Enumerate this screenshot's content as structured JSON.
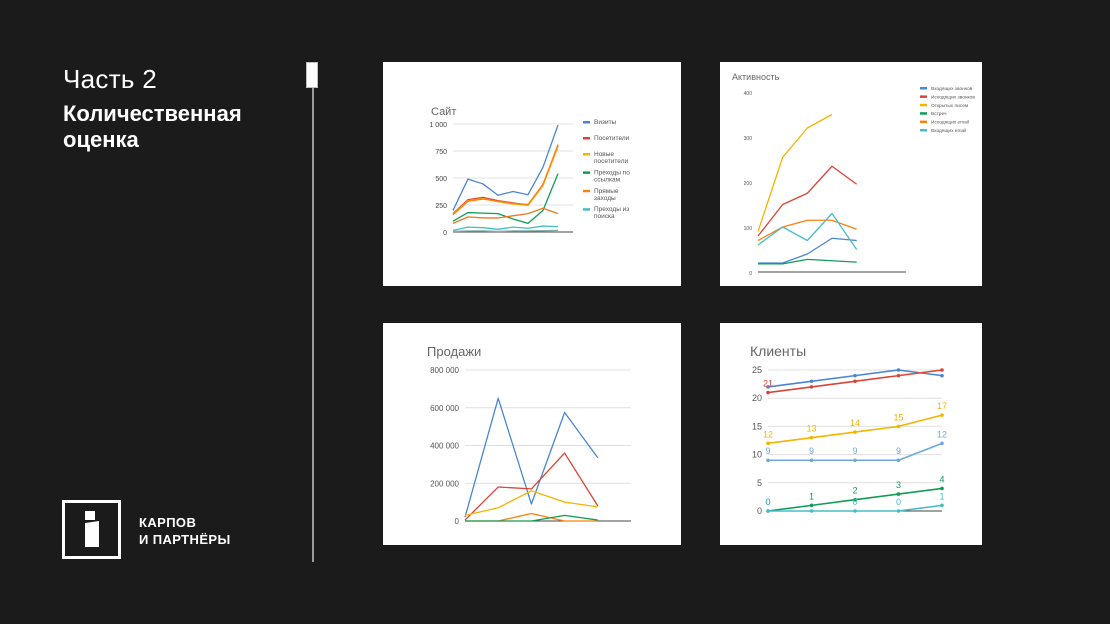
{
  "slide": {
    "title": "Часть 2",
    "subtitle": "Количественная оценка",
    "logo_line1": "КАРПОВ",
    "logo_line2": "И ПАРТНЁРЫ"
  },
  "chart_data": [
    {
      "id": "site",
      "type": "line",
      "title": "Сайт",
      "x": [
        1,
        2,
        3,
        4,
        5,
        6,
        7,
        8,
        9
      ],
      "ylim": [
        0,
        1000
      ],
      "yticks": [
        0,
        250,
        500,
        750,
        1000
      ],
      "ytick_labels": [
        "0",
        "250",
        "500",
        "750",
        "1 000"
      ],
      "grid": true,
      "legend": "right",
      "series": [
        {
          "name": "Визиты",
          "color": "#4a86d4",
          "values": [
            200,
            490,
            445,
            340,
            375,
            345,
            600,
            990,
            null
          ]
        },
        {
          "name": "Посетители",
          "color": "#db4437",
          "values": [
            170,
            300,
            320,
            290,
            270,
            250,
            440,
            800,
            null
          ]
        },
        {
          "name": "Новые посетители",
          "color": "#f4b400",
          "values": [
            165,
            290,
            310,
            280,
            260,
            245,
            430,
            790,
            null
          ]
        },
        {
          "name": "Преходы по ссылкам",
          "color": "#0f9d58",
          "values": [
            100,
            180,
            175,
            170,
            120,
            80,
            200,
            540,
            null
          ]
        },
        {
          "name": "Прямые заходы",
          "color": "#ff7f0e",
          "values": [
            160,
            285,
            305,
            285,
            265,
            255,
            440,
            810,
            null
          ]
        },
        {
          "name": "Преходы из поиска",
          "color": "#46bdc6",
          "values": [
            15,
            45,
            40,
            25,
            45,
            35,
            55,
            50,
            null
          ]
        },
        {
          "name": "",
          "color": "#e67c22",
          "values": [
            80,
            140,
            130,
            130,
            150,
            170,
            220,
            170,
            null
          ]
        },
        {
          "name": "",
          "color": "#7fb0a8",
          "values": [
            5,
            10,
            10,
            5,
            10,
            10,
            12,
            15,
            null
          ]
        }
      ]
    },
    {
      "id": "activity",
      "type": "line",
      "title": "Активность",
      "x": [
        1,
        2,
        3,
        4,
        5,
        6,
        7
      ],
      "ylim": [
        0,
        400
      ],
      "yticks": [
        0,
        100,
        200,
        300,
        400
      ],
      "ytick_labels": [
        "0",
        "100",
        "200",
        "300",
        "400"
      ],
      "grid": false,
      "legend": "right",
      "series": [
        {
          "name": "Входящих звонков",
          "color": "#4a86d4",
          "values": [
            20,
            20,
            40,
            75,
            70,
            null,
            null
          ]
        },
        {
          "name": "Исходящих звонков",
          "color": "#db4437",
          "values": [
            80,
            150,
            175,
            235,
            195,
            null,
            null
          ]
        },
        {
          "name": "Открытых писем",
          "color": "#f4b400",
          "values": [
            90,
            255,
            320,
            350,
            null,
            null,
            null
          ]
        },
        {
          "name": "Встреч",
          "color": "#0f9d58",
          "values": [
            18,
            18,
            28,
            25,
            22,
            null,
            null
          ]
        },
        {
          "name": "Исходящих email",
          "color": "#ff7f0e",
          "values": [
            70,
            100,
            115,
            115,
            95,
            null,
            null
          ]
        },
        {
          "name": "Входящих email",
          "color": "#46bdc6",
          "values": [
            60,
            100,
            70,
            130,
            50,
            null,
            null
          ]
        }
      ]
    },
    {
      "id": "sales",
      "type": "line",
      "title": "Продажи",
      "x": [
        1,
        2,
        3,
        4,
        5,
        6
      ],
      "ylim": [
        0,
        800000
      ],
      "yticks": [
        0,
        200000,
        400000,
        600000,
        800000
      ],
      "ytick_labels": [
        "0",
        "200 000",
        "400 000",
        "600 000",
        "800 000"
      ],
      "grid": true,
      "legend": "none",
      "series": [
        {
          "name": "",
          "color": "#4a86d4",
          "values": [
            20000,
            650000,
            90000,
            575000,
            335000,
            null
          ]
        },
        {
          "name": "",
          "color": "#db4437",
          "values": [
            5000,
            180000,
            170000,
            360000,
            80000,
            null
          ]
        },
        {
          "name": "",
          "color": "#f4b400",
          "values": [
            30000,
            70000,
            160000,
            100000,
            75000,
            null
          ]
        },
        {
          "name": "",
          "color": "#ff7f0e",
          "values": [
            0,
            0,
            40000,
            0,
            0,
            null
          ]
        },
        {
          "name": "",
          "color": "#0f9d58",
          "values": [
            0,
            0,
            0,
            30000,
            5000,
            null
          ]
        }
      ]
    },
    {
      "id": "clients",
      "type": "line",
      "title": "Клиенты",
      "x": [
        1,
        2,
        3,
        4,
        5
      ],
      "ylim": [
        0,
        25
      ],
      "yticks": [
        0,
        5,
        10,
        15,
        20,
        25
      ],
      "ytick_labels": [
        "0",
        "5",
        "10",
        "15",
        "20",
        "25"
      ],
      "grid": true,
      "legend": "none",
      "series": [
        {
          "name": "",
          "color": "#4a86d4",
          "values": [
            22,
            23,
            24,
            25,
            24
          ],
          "labels": [
            "",
            "",
            "",
            "",
            ""
          ]
        },
        {
          "name": "",
          "color": "#db4437",
          "values": [
            21,
            22,
            23,
            24,
            25
          ],
          "labels": [
            "21",
            "",
            "",
            "",
            ""
          ]
        },
        {
          "name": "",
          "color": "#f4b400",
          "values": [
            12,
            13,
            14,
            15,
            17
          ],
          "labels": [
            "12",
            "13",
            "14",
            "15",
            "17"
          ]
        },
        {
          "name": "",
          "color": "#6fa8dc",
          "values": [
            9,
            9,
            9,
            9,
            12
          ],
          "labels": [
            "9",
            "9",
            "9",
            "9",
            "12"
          ]
        },
        {
          "name": "",
          "color": "#0f9d58",
          "values": [
            0,
            1,
            2,
            3,
            4
          ],
          "labels": [
            "0",
            "1",
            "2",
            "3",
            "4"
          ]
        },
        {
          "name": "",
          "color": "#46bdc6",
          "values": [
            0,
            0,
            0,
            0,
            1
          ],
          "labels": [
            "0",
            "",
            "0",
            "0",
            "1"
          ]
        }
      ]
    }
  ]
}
